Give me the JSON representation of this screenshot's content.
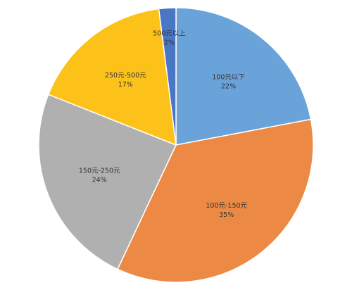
{
  "chart_data": {
    "type": "pie",
    "categories": [
      "100元以下",
      "100元-150元",
      "150元-250元",
      "250元-500元",
      "500元以上"
    ],
    "values": [
      22,
      35,
      24,
      17,
      2
    ],
    "value_labels": [
      "22%",
      "35%",
      "24%",
      "17%",
      "2%"
    ],
    "colors": [
      "#6aa3d9",
      "#ec8a45",
      "#b0b0b0",
      "#fdc21a",
      "#4a76c6"
    ]
  }
}
